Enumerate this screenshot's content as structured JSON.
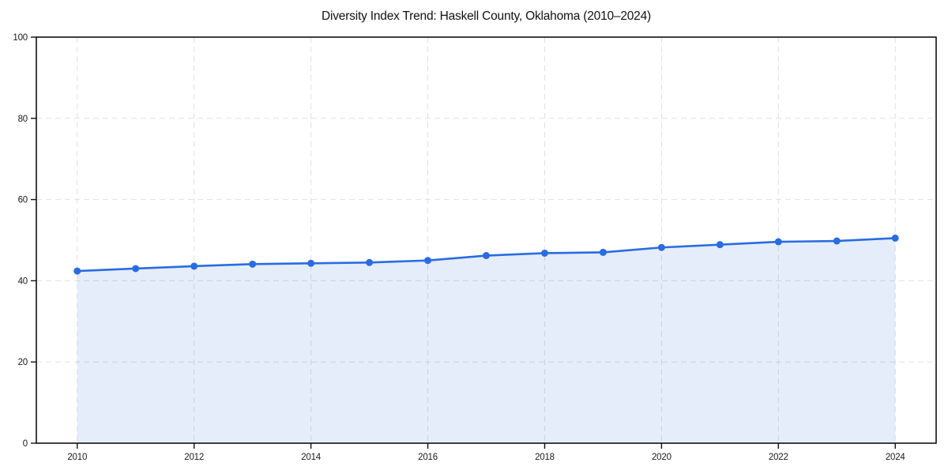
{
  "chart_data": {
    "type": "line",
    "title": "Diversity Index Trend: Haskell County, Oklahoma (2010–2024)",
    "xlabel": "",
    "ylabel": "",
    "x": [
      2010,
      2011,
      2012,
      2013,
      2014,
      2015,
      2016,
      2017,
      2018,
      2019,
      2020,
      2021,
      2022,
      2023,
      2024
    ],
    "series": [
      {
        "name": "Diversity Index",
        "values": [
          42.4,
          43.0,
          43.6,
          44.1,
          44.3,
          44.5,
          45.0,
          46.2,
          46.8,
          47.0,
          48.2,
          48.9,
          49.6,
          49.8,
          50.5
        ]
      }
    ],
    "ylim": [
      0,
      100
    ],
    "yticks": [
      0,
      20,
      40,
      60,
      80,
      100
    ],
    "xticks": [
      2010,
      2012,
      2014,
      2016,
      2018,
      2020,
      2022,
      2024
    ],
    "grid": true,
    "grid_style": "dashed",
    "legend": "none",
    "marker": "circle",
    "area_fill": true,
    "colors": {
      "line": "#2a6ce0",
      "area": "#e5edfb",
      "grid": "#e1e1e1",
      "axis": "#111111",
      "tick_label": "#1a1a1a",
      "title": "#111111",
      "background": "#ffffff"
    }
  }
}
